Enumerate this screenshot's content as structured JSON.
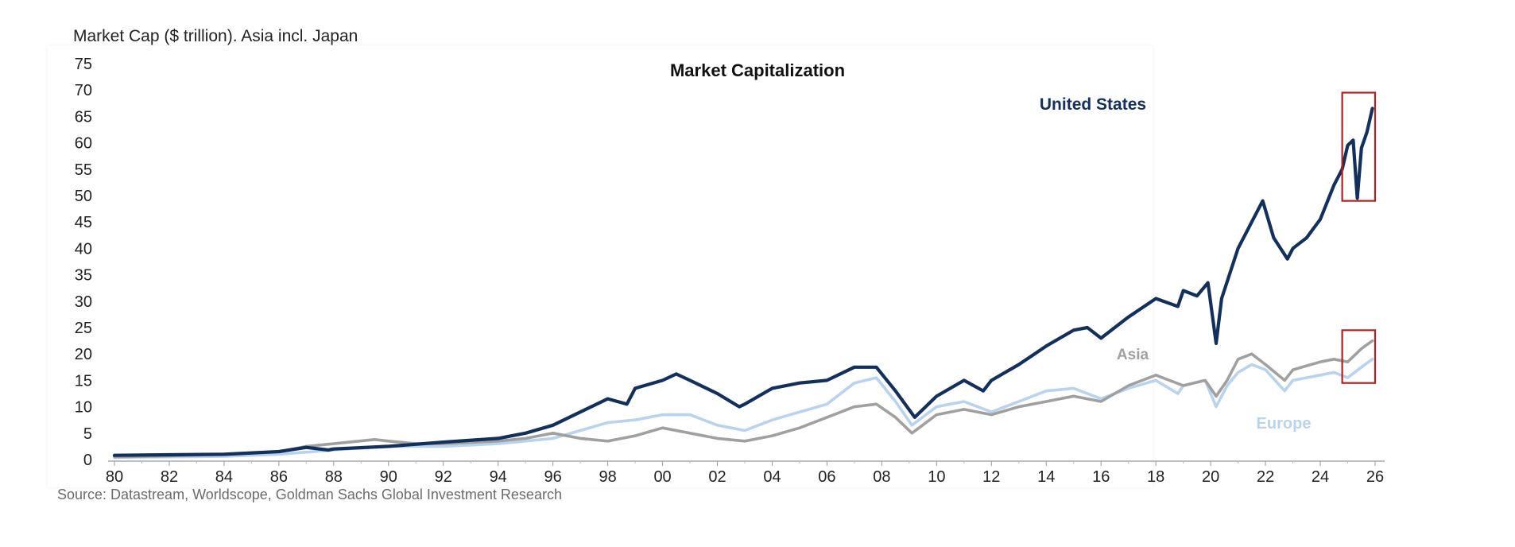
{
  "header_note": "Market Cap ($ trillion). Asia incl. Japan",
  "source_note": "Source: Datastream, Worldscope, Goldman Sachs Global Investment Research",
  "chart_data": {
    "type": "line",
    "title": "Market Capitalization",
    "xlabel": "",
    "ylabel": "",
    "xlim": [
      1980,
      2026
    ],
    "ylim": [
      0,
      75
    ],
    "x_ticks": [
      "80",
      "82",
      "84",
      "86",
      "88",
      "90",
      "92",
      "94",
      "96",
      "98",
      "00",
      "02",
      "04",
      "06",
      "08",
      "10",
      "12",
      "14",
      "16",
      "18",
      "20",
      "22",
      "24",
      "26"
    ],
    "y_ticks": [
      0,
      5,
      10,
      15,
      20,
      25,
      30,
      35,
      40,
      45,
      50,
      55,
      60,
      65,
      70,
      75
    ],
    "grid": false,
    "series": [
      {
        "name": "United States",
        "color": "#13305c",
        "x": [
          1980,
          1982,
          1984,
          1986,
          1987,
          1987.8,
          1988,
          1990,
          1992,
          1994,
          1995,
          1996,
          1997,
          1998,
          1998.7,
          1999,
          2000,
          2000.5,
          2001,
          2002,
          2002.8,
          2003,
          2004,
          2005,
          2006,
          2007,
          2007.8,
          2008.5,
          2009.2,
          2010,
          2011,
          2011.7,
          2012,
          2013,
          2014,
          2015,
          2015.5,
          2016,
          2017,
          2018,
          2018.8,
          2019,
          2019.5,
          2019.9,
          2020.2,
          2020.4,
          2021,
          2021.5,
          2021.9,
          2022.3,
          2022.8,
          2023,
          2023.5,
          2024,
          2024.5,
          2024.8,
          2025,
          2025.2,
          2025.35,
          2025.5,
          2025.7,
          2025.9
        ],
        "y": [
          0.8,
          0.9,
          1.0,
          1.5,
          2.3,
          1.8,
          2.0,
          2.5,
          3.3,
          4.0,
          5.0,
          6.5,
          9.0,
          11.5,
          10.5,
          13.5,
          15.0,
          16.2,
          15.0,
          12.5,
          10.0,
          10.5,
          13.5,
          14.5,
          15.0,
          17.5,
          17.5,
          13.0,
          8.0,
          12.0,
          15.0,
          13.0,
          15.0,
          18.0,
          21.5,
          24.5,
          25.0,
          23.0,
          27.0,
          30.5,
          29.0,
          32.0,
          31.0,
          33.5,
          22.0,
          30.5,
          40.0,
          45.0,
          49.0,
          42.0,
          38.0,
          40.0,
          42.0,
          45.5,
          52.0,
          55.0,
          59.5,
          60.5,
          49.5,
          59.0,
          62.0,
          66.5
        ]
      },
      {
        "name": "Asia",
        "color": "#a0a0a0",
        "x": [
          1980,
          1982,
          1984,
          1986,
          1987,
          1988,
          1989.5,
          1990,
          1991,
          1992,
          1994,
          1995,
          1996,
          1997,
          1998,
          1999,
          2000,
          2001,
          2002,
          2003,
          2004,
          2005,
          2006,
          2007,
          2007.8,
          2008.5,
          2009.1,
          2010,
          2011,
          2012,
          2013,
          2014,
          2015,
          2016,
          2017,
          2018,
          2019,
          2019.8,
          2020.2,
          2020.6,
          2021,
          2021.5,
          2022,
          2022.7,
          2023,
          2024,
          2024.5,
          2025,
          2025.5,
          2025.9
        ],
        "y": [
          0.5,
          0.7,
          1.0,
          1.5,
          2.5,
          3.0,
          3.8,
          3.5,
          3.0,
          3.0,
          3.5,
          4.0,
          5.0,
          4.0,
          3.5,
          4.5,
          6.0,
          5.0,
          4.0,
          3.5,
          4.5,
          6.0,
          8.0,
          10.0,
          10.5,
          8.0,
          5.0,
          8.5,
          9.5,
          8.5,
          10.0,
          11.0,
          12.0,
          11.0,
          14.0,
          16.0,
          14.0,
          15.0,
          12.0,
          15.0,
          19.0,
          20.0,
          18.0,
          15.0,
          17.0,
          18.5,
          19.0,
          18.5,
          21.0,
          22.5
        ]
      },
      {
        "name": "Europe",
        "color": "#b9d3ee",
        "x": [
          1980,
          1982,
          1984,
          1986,
          1988,
          1990,
          1992,
          1994,
          1996,
          1997,
          1998,
          1999,
          2000,
          2001,
          2002,
          2003,
          2004,
          2005,
          2006,
          2007,
          2007.8,
          2008.5,
          2009.1,
          2010,
          2011,
          2012,
          2013,
          2014,
          2015,
          2016,
          2017,
          2018,
          2018.8,
          2019,
          2019.8,
          2020.2,
          2020.6,
          2021,
          2021.5,
          2022,
          2022.7,
          2023,
          2024,
          2024.5,
          2025,
          2025.5,
          2025.9
        ],
        "y": [
          0.4,
          0.5,
          0.6,
          1.0,
          1.8,
          2.5,
          2.5,
          3.0,
          4.0,
          5.5,
          7.0,
          7.5,
          8.5,
          8.5,
          6.5,
          5.5,
          7.5,
          9.0,
          10.5,
          14.5,
          15.5,
          11.0,
          6.5,
          10.0,
          11.0,
          9.0,
          11.0,
          13.0,
          13.5,
          11.5,
          13.5,
          15.0,
          12.5,
          14.0,
          15.0,
          10.0,
          14.0,
          16.5,
          18.0,
          17.0,
          13.0,
          15.0,
          16.0,
          16.5,
          15.5,
          17.5,
          19.0
        ]
      }
    ],
    "annotations": [
      {
        "text": "United States",
        "color": "#13305c"
      },
      {
        "text": "Asia",
        "color": "#a0a0a0"
      },
      {
        "text": "Europe",
        "color": "#b9d3ee"
      }
    ],
    "highlight_boxes": [
      {
        "x_range": [
          2024.8,
          2026.0
        ],
        "y_range": [
          49.0,
          69.5
        ],
        "color": "#b22222"
      },
      {
        "x_range": [
          2024.8,
          2026.0
        ],
        "y_range": [
          14.5,
          24.5
        ],
        "color": "#b22222"
      }
    ]
  }
}
